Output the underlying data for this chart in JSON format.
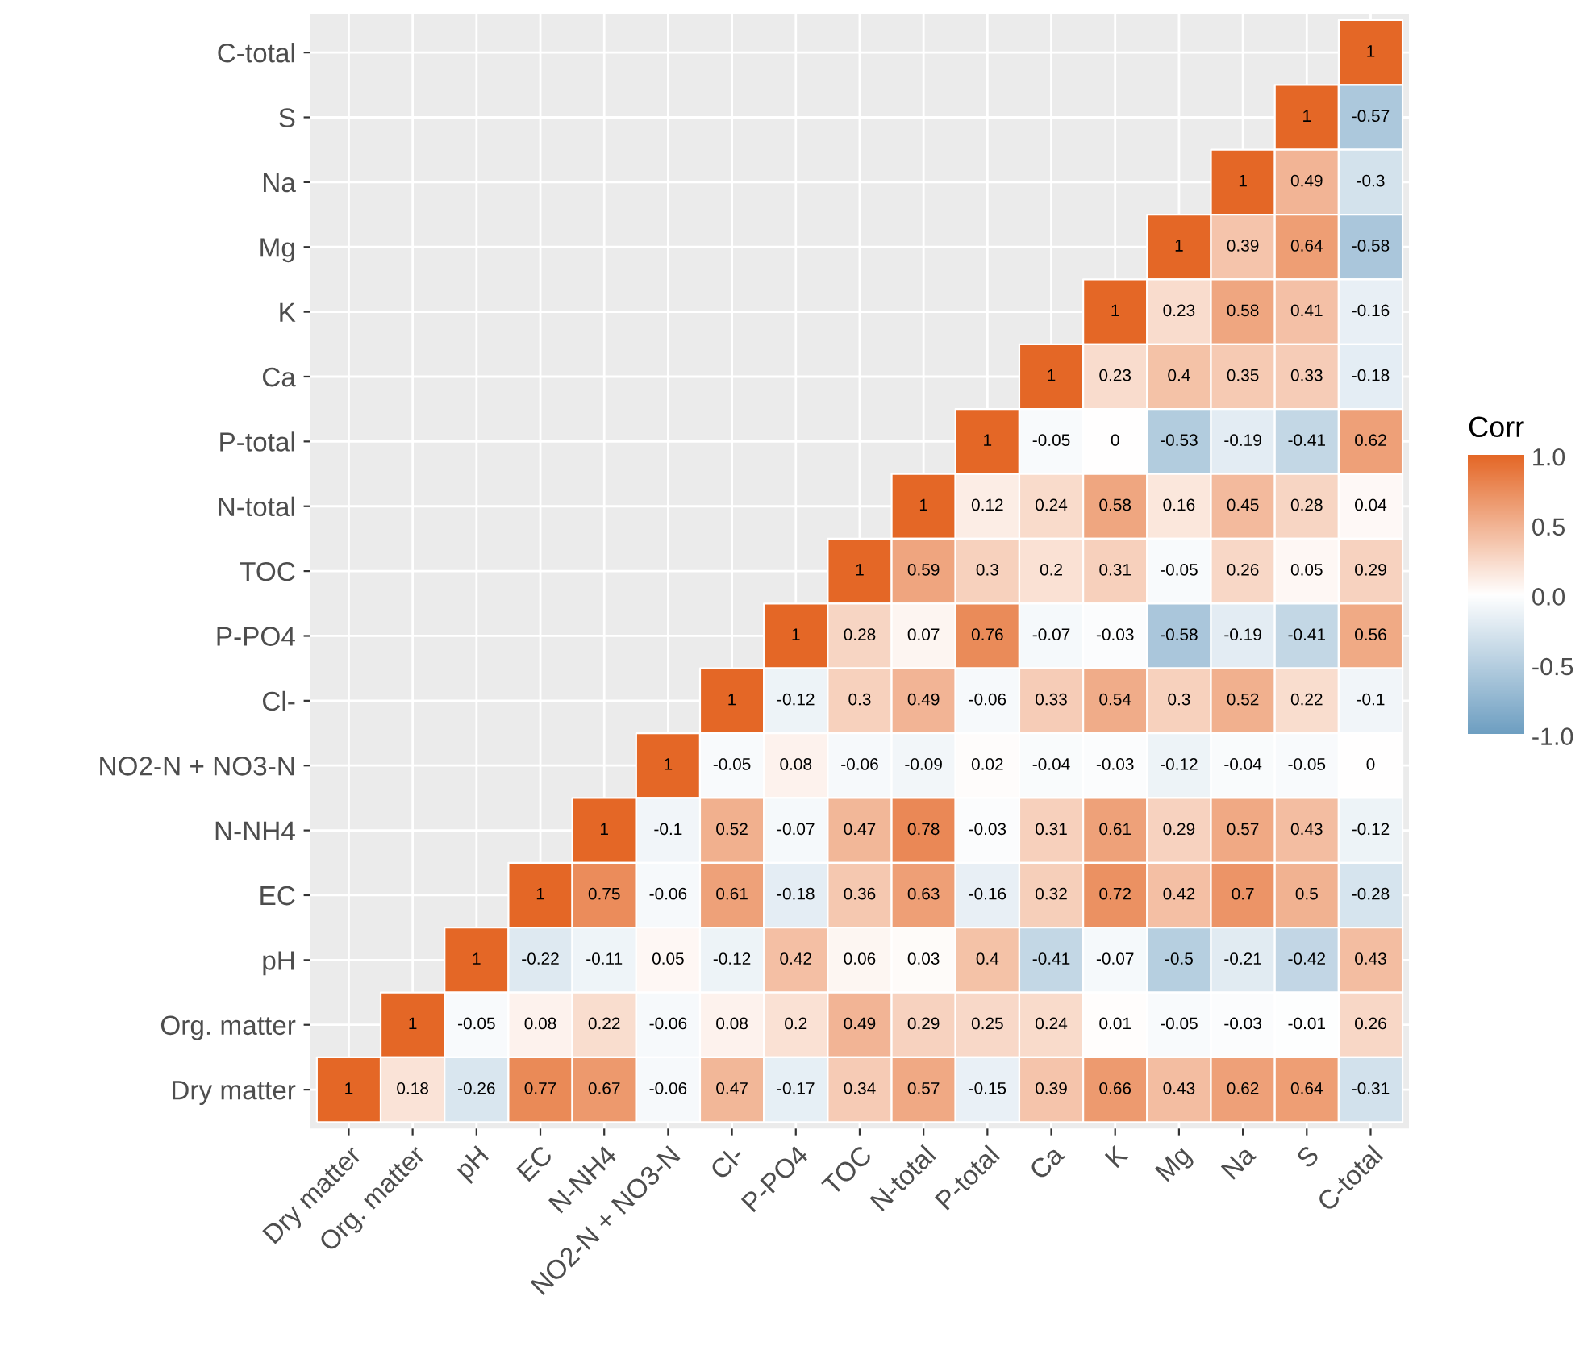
{
  "chart_data": {
    "type": "heatmap",
    "clabel": "Corr",
    "categories": [
      "Dry matter",
      "Org. matter",
      "pH",
      "EC",
      "N-NH4",
      "NO2-N + NO3-N",
      "Cl-",
      "P-PO4",
      "TOC",
      "N-total",
      "P-total",
      "Ca",
      "K",
      "Mg",
      "Na",
      "S",
      "C-total"
    ],
    "y_categories": [
      "C-total",
      "S",
      "Na",
      "Mg",
      "K",
      "Ca",
      "P-total",
      "N-total",
      "TOC",
      "P-PO4",
      "Cl-",
      "NO2-N + NO3-N",
      "N-NH4",
      "EC",
      "pH",
      "Org. matter",
      "Dry matter"
    ],
    "cells": [
      [
        null,
        null,
        null,
        null,
        null,
        null,
        null,
        null,
        null,
        null,
        null,
        null,
        null,
        null,
        null,
        null,
        1
      ],
      [
        null,
        null,
        null,
        null,
        null,
        null,
        null,
        null,
        null,
        null,
        null,
        null,
        null,
        null,
        null,
        1,
        -0.57
      ],
      [
        null,
        null,
        null,
        null,
        null,
        null,
        null,
        null,
        null,
        null,
        null,
        null,
        null,
        null,
        1,
        0.49,
        -0.3
      ],
      [
        null,
        null,
        null,
        null,
        null,
        null,
        null,
        null,
        null,
        null,
        null,
        null,
        null,
        1,
        0.39,
        0.64,
        -0.58
      ],
      [
        null,
        null,
        null,
        null,
        null,
        null,
        null,
        null,
        null,
        null,
        null,
        null,
        1,
        0.23,
        0.58,
        0.41,
        -0.16
      ],
      [
        null,
        null,
        null,
        null,
        null,
        null,
        null,
        null,
        null,
        null,
        null,
        1,
        0.23,
        0.4,
        0.35,
        0.33,
        -0.18
      ],
      [
        null,
        null,
        null,
        null,
        null,
        null,
        null,
        null,
        null,
        null,
        1,
        -0.05,
        0,
        -0.53,
        -0.19,
        -0.41,
        0.62
      ],
      [
        null,
        null,
        null,
        null,
        null,
        null,
        null,
        null,
        null,
        1,
        0.12,
        0.24,
        0.58,
        0.16,
        0.45,
        0.28,
        0.04
      ],
      [
        null,
        null,
        null,
        null,
        null,
        null,
        null,
        null,
        1,
        0.59,
        0.3,
        0.2,
        0.31,
        -0.05,
        0.26,
        0.05,
        0.29
      ],
      [
        null,
        null,
        null,
        null,
        null,
        null,
        null,
        1,
        0.28,
        0.07,
        0.76,
        -0.07,
        -0.03,
        -0.58,
        -0.19,
        -0.41,
        0.56
      ],
      [
        null,
        null,
        null,
        null,
        null,
        null,
        1,
        -0.12,
        0.3,
        0.49,
        -0.06,
        0.33,
        0.54,
        0.3,
        0.52,
        0.22,
        -0.1
      ],
      [
        null,
        null,
        null,
        null,
        null,
        1,
        -0.05,
        0.08,
        -0.06,
        -0.09,
        0.02,
        -0.04,
        -0.03,
        -0.12,
        -0.04,
        -0.05,
        0
      ],
      [
        null,
        null,
        null,
        null,
        1,
        -0.1,
        0.52,
        -0.07,
        0.47,
        0.78,
        -0.03,
        0.31,
        0.61,
        0.29,
        0.57,
        0.43,
        -0.12
      ],
      [
        null,
        null,
        null,
        1,
        0.75,
        -0.06,
        0.61,
        -0.18,
        0.36,
        0.63,
        -0.16,
        0.32,
        0.72,
        0.42,
        0.7,
        0.5,
        -0.28
      ],
      [
        null,
        null,
        1,
        -0.22,
        -0.11,
        0.05,
        -0.12,
        0.42,
        0.06,
        0.03,
        0.4,
        -0.41,
        -0.07,
        -0.5,
        -0.21,
        -0.42,
        0.43
      ],
      [
        null,
        1,
        -0.05,
        0.08,
        0.22,
        -0.06,
        0.08,
        0.2,
        0.49,
        0.29,
        0.25,
        0.24,
        0.01,
        -0.05,
        -0.03,
        -0.01,
        0.26
      ],
      [
        1,
        0.18,
        -0.26,
        0.77,
        0.67,
        -0.06,
        0.47,
        -0.17,
        0.34,
        0.57,
        -0.15,
        0.39,
        0.66,
        0.43,
        0.62,
        0.64,
        -0.31
      ]
    ],
    "colors": [
      "#6d9ec1",
      "#ffffff",
      "#e46726"
    ],
    "clim": [
      -1,
      1
    ],
    "cticks": [
      {
        "value": -1,
        "label": "-1.0"
      },
      {
        "value": -0.5,
        "label": "-0.5"
      },
      {
        "value": 0,
        "label": "0.0"
      },
      {
        "value": 0.5,
        "label": "0.5"
      },
      {
        "value": 1,
        "label": "1.0"
      }
    ],
    "data_labels": true,
    "grid": true
  }
}
